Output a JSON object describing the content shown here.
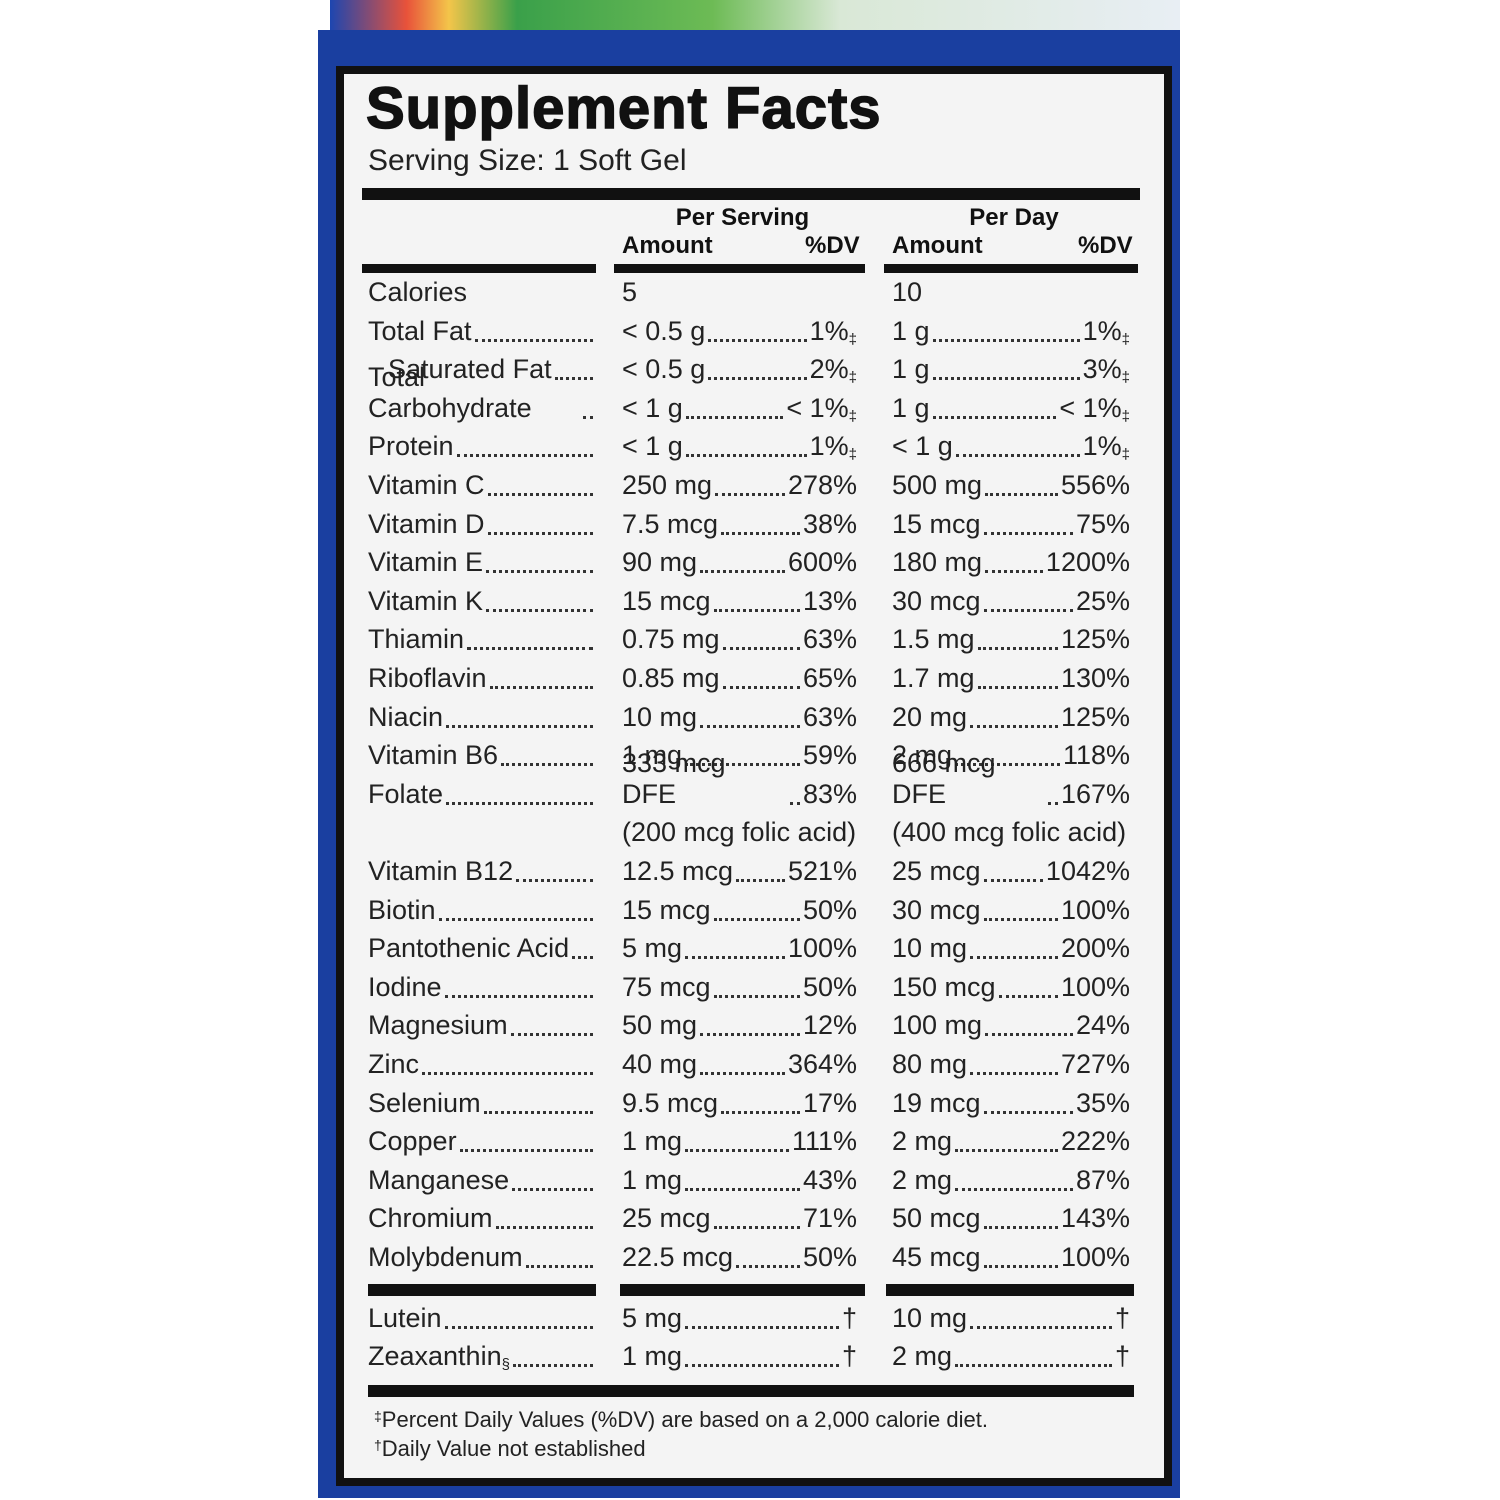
{
  "label": {
    "title": "Supplement Facts",
    "serving_size": "Serving Size: 1 Soft Gel",
    "columns": [
      {
        "heading": "Per Serving",
        "amount": "Amount",
        "dv": "%DV"
      },
      {
        "heading": "Per Day",
        "amount": "Amount",
        "dv": "%DV"
      }
    ],
    "rows": [
      {
        "name": "Calories",
        "serving": {
          "amount": "5"
        },
        "day": {
          "amount": "10"
        }
      },
      {
        "name": "Total Fat",
        "serving": {
          "amount": "< 0.5 g",
          "dv": "1%",
          "mark": "‡"
        },
        "day": {
          "amount": "1 g",
          "dv": "1%",
          "mark": "‡"
        }
      },
      {
        "name": "Saturated Fat",
        "serving": {
          "amount": "< 0.5 g",
          "dv": "2%",
          "mark": "‡"
        },
        "day": {
          "amount": "1 g",
          "dv": "3%",
          "mark": "‡"
        }
      },
      {
        "name": "Total Carbohydrate",
        "serving": {
          "amount": "< 1 g",
          "dv": "< 1%",
          "mark": "‡"
        },
        "day": {
          "amount": "1 g",
          "dv": "< 1%",
          "mark": "‡"
        }
      },
      {
        "name": "Protein",
        "serving": {
          "amount": "< 1 g",
          "dv": "1%",
          "mark": "‡"
        },
        "day": {
          "amount": "< 1 g",
          "dv": "1%",
          "mark": "‡"
        }
      },
      {
        "name": "Vitamin C",
        "serving": {
          "amount": "250 mg",
          "dv": "278%"
        },
        "day": {
          "amount": "500 mg",
          "dv": "556%"
        }
      },
      {
        "name": "Vitamin D",
        "serving": {
          "amount": "7.5 mcg",
          "dv": "38%"
        },
        "day": {
          "amount": "15 mcg",
          "dv": "75%"
        }
      },
      {
        "name": "Vitamin E",
        "serving": {
          "amount": "90 mg",
          "dv": "600%"
        },
        "day": {
          "amount": "180 mg",
          "dv": "1200%"
        }
      },
      {
        "name": "Vitamin K",
        "serving": {
          "amount": "15 mcg",
          "dv": "13%"
        },
        "day": {
          "amount": "30 mcg",
          "dv": "25%"
        }
      },
      {
        "name": "Thiamin",
        "serving": {
          "amount": "0.75 mg",
          "dv": "63%"
        },
        "day": {
          "amount": "1.5 mg",
          "dv": "125%"
        }
      },
      {
        "name": "Riboflavin",
        "serving": {
          "amount": "0.85 mg",
          "dv": "65%"
        },
        "day": {
          "amount": "1.7 mg",
          "dv": "130%"
        }
      },
      {
        "name": "Niacin",
        "serving": {
          "amount": "10 mg",
          "dv": "63%"
        },
        "day": {
          "amount": "20 mg",
          "dv": "125%"
        }
      },
      {
        "name": "Vitamin B6",
        "serving": {
          "amount": "1 mg",
          "dv": "59%"
        },
        "day": {
          "amount": "2 mg",
          "dv": "118%"
        }
      },
      {
        "name": "Folate",
        "serving": {
          "amount": "333 mcg DFE",
          "dv": "83%",
          "note": "(200 mcg folic acid)"
        },
        "day": {
          "amount": "666 mcg DFE",
          "dv": "167%",
          "note": "(400 mcg folic acid)"
        }
      },
      {
        "name": "Vitamin B12",
        "serving": {
          "amount": "12.5 mcg",
          "dv": "521%"
        },
        "day": {
          "amount": "25 mcg",
          "dv": "1042%"
        }
      },
      {
        "name": "Biotin",
        "serving": {
          "amount": "15 mcg",
          "dv": "50%"
        },
        "day": {
          "amount": "30 mcg",
          "dv": "100%"
        }
      },
      {
        "name": "Pantothenic Acid",
        "serving": {
          "amount": "5 mg",
          "dv": "100%"
        },
        "day": {
          "amount": "10 mg",
          "dv": "200%"
        }
      },
      {
        "name": "Iodine",
        "serving": {
          "amount": "75 mcg",
          "dv": "50%"
        },
        "day": {
          "amount": "150 mcg",
          "dv": "100%"
        }
      },
      {
        "name": "Magnesium",
        "serving": {
          "amount": "50 mg",
          "dv": "12%"
        },
        "day": {
          "amount": "100 mg",
          "dv": "24%"
        }
      },
      {
        "name": "Zinc",
        "serving": {
          "amount": "40 mg",
          "dv": "364%"
        },
        "day": {
          "amount": "80 mg",
          "dv": "727%"
        }
      },
      {
        "name": "Selenium",
        "serving": {
          "amount": "9.5 mcg",
          "dv": "17%"
        },
        "day": {
          "amount": "19 mcg",
          "dv": "35%"
        }
      },
      {
        "name": "Copper",
        "serving": {
          "amount": "1 mg",
          "dv": "111%"
        },
        "day": {
          "amount": "2 mg",
          "dv": "222%"
        }
      },
      {
        "name": "Manganese",
        "serving": {
          "amount": "1 mg",
          "dv": "43%"
        },
        "day": {
          "amount": "2 mg",
          "dv": "87%"
        }
      },
      {
        "name": "Chromium",
        "serving": {
          "amount": "25 mcg",
          "dv": "71%"
        },
        "day": {
          "amount": "50 mcg",
          "dv": "143%"
        }
      },
      {
        "name": "Molybdenum",
        "serving": {
          "amount": "22.5 mcg",
          "dv": "50%"
        },
        "day": {
          "amount": "45 mcg",
          "dv": "100%"
        }
      }
    ],
    "other_rows": [
      {
        "name": "Lutein",
        "serving": {
          "amount": "5 mg",
          "dv": "†"
        },
        "day": {
          "amount": "10 mg",
          "dv": "†"
        }
      },
      {
        "name": "Zeaxanthin",
        "mark": "§",
        "serving": {
          "amount": "1 mg",
          "dv": "†"
        },
        "day": {
          "amount": "2 mg",
          "dv": "†"
        }
      }
    ],
    "footnotes": [
      {
        "mark": "‡",
        "text": "Percent Daily Values (%DV) are based on a 2,000 calorie diet."
      },
      {
        "mark": "†",
        "text": "Daily Value not established"
      }
    ]
  }
}
